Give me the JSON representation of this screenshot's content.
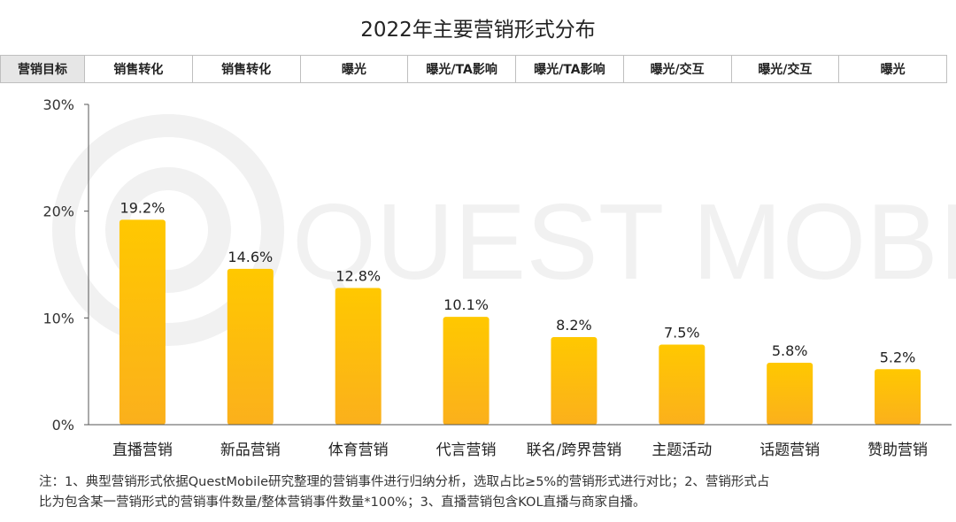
{
  "title": "2022年主要营销形式分布",
  "goal_row": {
    "label": "营销目标",
    "cells": [
      "销售转化",
      "销售转化",
      "曝光",
      "曝光/TA影响",
      "曝光/TA影响",
      "曝光/交互",
      "曝光/交互",
      "曝光"
    ]
  },
  "watermark": "QUEST MOBILE",
  "notes": {
    "line1": "注：1、典型营销形式依据QuestMobile研究整理的营销事件进行归纳分析，选取占比≥5%的营销形式进行对比；2、营销形式占",
    "line2": "比为包含某一营销形式的营销事件数量/整体营销事件数量*100%；3、直播营销包含KOL直播与商家自播。"
  },
  "colors": {
    "bar_top": "#ffc800",
    "bar_bottom": "#fbb01c",
    "axis": "#555555"
  },
  "chart_data": {
    "type": "bar",
    "categories": [
      "直播营销",
      "新品营销",
      "体育营销",
      "代言营销",
      "联名/跨界营销",
      "主题活动",
      "话题营销",
      "赞助营销"
    ],
    "values": [
      19.2,
      14.6,
      12.8,
      10.1,
      8.2,
      7.5,
      5.8,
      5.2
    ],
    "value_labels": [
      "19.2%",
      "14.6%",
      "12.8%",
      "10.1%",
      "8.2%",
      "7.5%",
      "5.8%",
      "5.2%"
    ],
    "ylim": [
      0,
      30
    ],
    "yticks": [
      0,
      10,
      20,
      30
    ],
    "ytick_labels": [
      "0%",
      "10%",
      "20%",
      "30%"
    ],
    "grid": false,
    "legend": "none"
  }
}
